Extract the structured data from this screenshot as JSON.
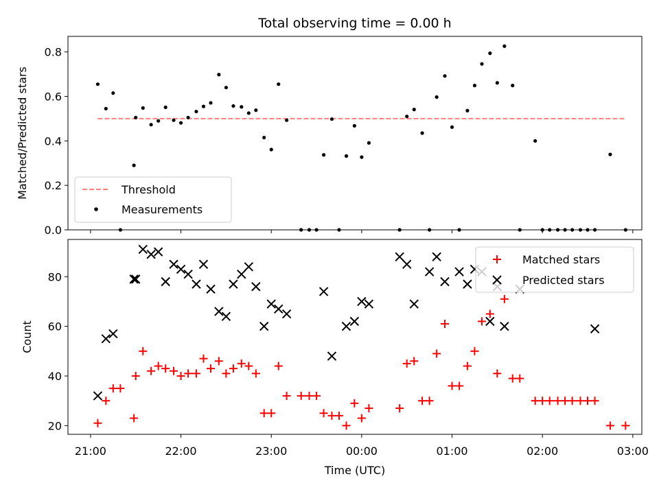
{
  "chart_data": [
    {
      "type": "scatter",
      "title": "Total observing time = 0.00 h",
      "ylabel": "Matched/Predicted stars",
      "ylim": [
        0,
        0.87
      ],
      "yticks": [
        "0.0",
        "0.2",
        "0.4",
        "0.6",
        "0.8"
      ],
      "xrange_hours": [
        20.75,
        27.1
      ],
      "grid": false,
      "legend_position": "lower-left",
      "threshold": {
        "name": "Threshold",
        "value": 0.5,
        "x": [
          21.08,
          26.92
        ],
        "color": "#ff7f7f"
      },
      "series": [
        {
          "name": "Measurements",
          "color": "#000000",
          "x": [
            21.08,
            21.17,
            21.25,
            21.33,
            21.48,
            21.5,
            21.58,
            21.67,
            21.75,
            21.83,
            21.92,
            22.0,
            22.08,
            22.17,
            22.25,
            22.33,
            22.42,
            22.5,
            22.58,
            22.67,
            22.75,
            22.83,
            22.92,
            23.0,
            23.08,
            23.17,
            23.33,
            23.42,
            23.5,
            23.58,
            23.67,
            23.75,
            23.83,
            23.92,
            24.0,
            24.08,
            24.42,
            24.5,
            24.58,
            24.67,
            24.75,
            24.83,
            24.92,
            25.0,
            25.08,
            25.17,
            25.25,
            25.33,
            25.42,
            25.5,
            25.58,
            25.67,
            25.75,
            25.92,
            26.0,
            26.08,
            26.17,
            26.25,
            26.33,
            26.42,
            26.5,
            26.58,
            26.75,
            26.92
          ],
          "y": [
            0.655,
            0.545,
            0.615,
            0.0,
            0.29,
            0.505,
            0.548,
            0.473,
            0.49,
            0.551,
            0.493,
            0.481,
            0.505,
            0.532,
            0.555,
            0.571,
            0.698,
            0.64,
            0.557,
            0.553,
            0.525,
            0.538,
            0.415,
            0.361,
            0.655,
            0.493,
            0.0,
            0.0,
            0.0,
            0.337,
            0.498,
            0.0,
            0.332,
            0.468,
            0.327,
            0.391,
            0.0,
            0.51,
            0.541,
            0.435,
            0.0,
            0.597,
            0.692,
            0.462,
            0.0,
            0.536,
            0.649,
            0.746,
            0.794,
            0.661,
            0.826,
            0.649,
            0.0,
            0.4,
            0.0,
            0.0,
            0.0,
            0.0,
            0.0,
            0.0,
            0.0,
            0.0,
            0.339,
            0.0
          ]
        }
      ]
    },
    {
      "type": "scatter",
      "ylabel": "Count",
      "xlabel": "Time (UTC)",
      "ylim": [
        16.5,
        95
      ],
      "yticks": [
        "20",
        "40",
        "60",
        "80"
      ],
      "xrange_hours": [
        20.75,
        27.1
      ],
      "xticks": [
        {
          "h": 21,
          "label": "21:00"
        },
        {
          "h": 22,
          "label": "22:00"
        },
        {
          "h": 23,
          "label": "23:00"
        },
        {
          "h": 24,
          "label": "00:00"
        },
        {
          "h": 25,
          "label": "01:00"
        },
        {
          "h": 26,
          "label": "02:00"
        },
        {
          "h": 27,
          "label": "03:00"
        }
      ],
      "grid": false,
      "legend_position": "upper-right",
      "series": [
        {
          "name": "Matched stars",
          "marker": "plus",
          "color": "#ff0000",
          "x": [
            21.08,
            21.17,
            21.25,
            21.33,
            21.48,
            21.5,
            21.58,
            21.67,
            21.75,
            21.83,
            21.92,
            22.0,
            22.08,
            22.17,
            22.25,
            22.33,
            22.42,
            22.5,
            22.58,
            22.67,
            22.75,
            22.83,
            22.92,
            23.0,
            23.08,
            23.17,
            23.33,
            23.42,
            23.5,
            23.58,
            23.67,
            23.75,
            23.83,
            23.92,
            24.0,
            24.08,
            24.42,
            24.5,
            24.58,
            24.67,
            24.75,
            24.83,
            24.92,
            25.0,
            25.08,
            25.17,
            25.25,
            25.33,
            25.42,
            25.5,
            25.58,
            25.67,
            25.75,
            25.92,
            26.0,
            26.08,
            26.17,
            26.25,
            26.33,
            26.42,
            26.5,
            26.58,
            26.75,
            26.92
          ],
          "y": [
            21,
            30,
            35,
            35,
            23,
            40,
            50,
            42,
            44,
            43,
            42,
            40,
            41,
            41,
            47,
            43,
            46,
            41,
            43,
            45,
            44,
            41,
            25,
            25,
            44,
            32,
            32,
            32,
            32,
            25,
            24,
            24,
            20,
            29,
            23,
            27,
            27,
            45,
            46,
            30,
            30,
            49,
            61,
            36,
            36,
            44,
            50,
            62,
            65,
            41,
            71,
            39,
            39,
            30,
            30,
            30,
            30,
            30,
            30,
            30,
            30,
            30,
            20,
            20
          ]
        },
        {
          "name": "Predicted stars",
          "marker": "x",
          "color": "#000000",
          "x": [
            21.08,
            21.17,
            21.25,
            21.48,
            21.5,
            21.58,
            21.67,
            21.75,
            21.83,
            21.92,
            22.0,
            22.08,
            22.17,
            22.25,
            22.33,
            22.42,
            22.5,
            22.58,
            22.67,
            22.75,
            22.83,
            22.92,
            23.0,
            23.08,
            23.17,
            23.58,
            23.67,
            23.83,
            23.92,
            24.0,
            24.08,
            24.42,
            24.5,
            24.58,
            24.75,
            24.83,
            24.92,
            25.08,
            25.17,
            25.25,
            25.33,
            25.42,
            25.5,
            25.58,
            25.75,
            26.58
          ],
          "y": [
            32,
            55,
            57,
            79,
            79,
            91,
            89,
            90,
            78,
            85,
            83,
            81,
            77,
            85,
            75,
            66,
            64,
            77,
            81,
            84,
            76,
            60,
            69,
            67,
            65,
            74,
            48,
            60,
            62,
            70,
            69,
            88,
            85,
            69,
            82,
            88,
            78,
            82,
            77,
            83,
            82,
            62,
            76,
            60,
            75,
            59
          ]
        }
      ]
    }
  ]
}
